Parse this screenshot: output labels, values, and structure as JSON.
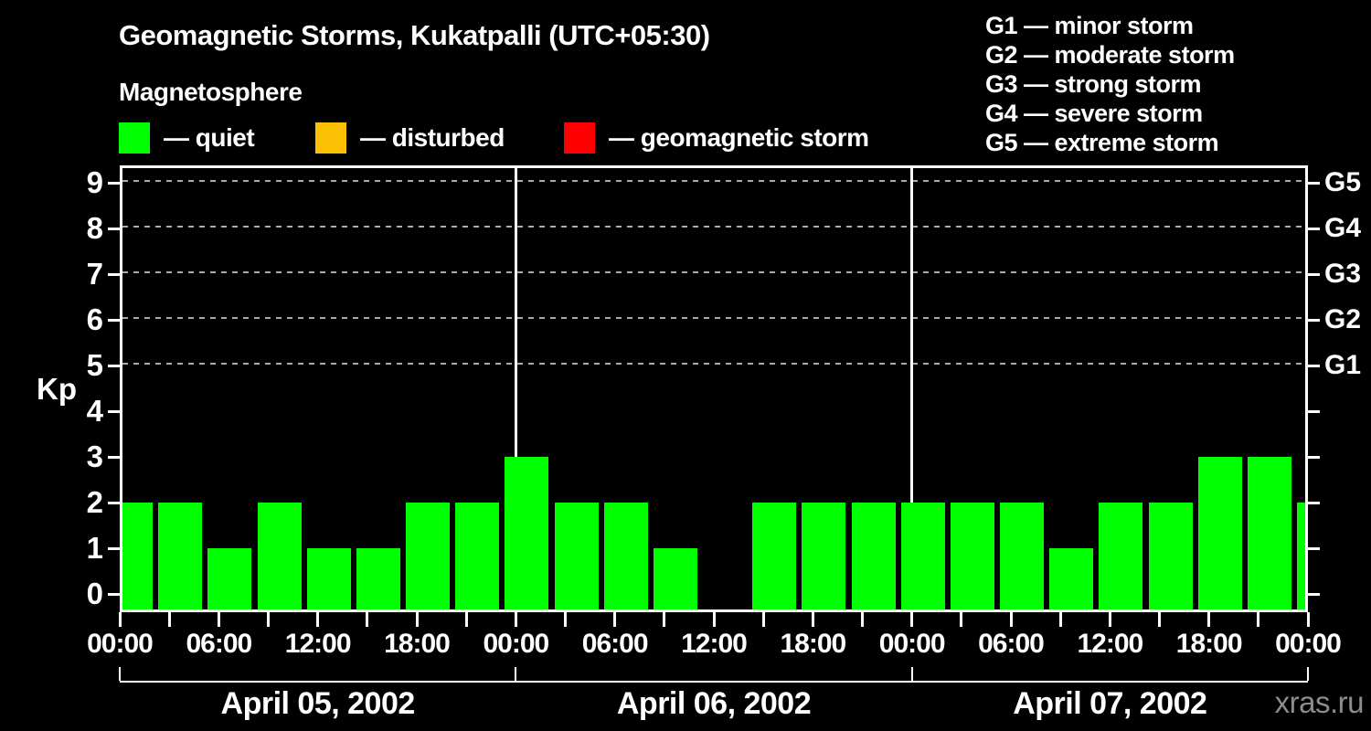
{
  "header": {
    "title": "Geomagnetic Storms, Kukatpalli (UTC+05:30)",
    "subtitle": "Magnetosphere"
  },
  "legend": {
    "items": [
      {
        "name": "quiet",
        "label": "— quiet",
        "color": "#00ff00"
      },
      {
        "name": "disturbed",
        "label": "— disturbed",
        "color": "#fcc005"
      },
      {
        "name": "geomagnetic-storm",
        "label": "— geomagnetic storm",
        "color": "#ff0000"
      }
    ]
  },
  "g_scale_legend": {
    "lines": [
      "G1 — minor storm",
      "G2 — moderate storm",
      "G3 — strong storm",
      "G4 — severe storm",
      "G5 — extreme storm"
    ]
  },
  "watermark": "xras.ru",
  "chart_data": {
    "type": "bar",
    "title": "Geomagnetic Storms, Kukatpalli (UTC+05:30)",
    "subtitle": "Magnetosphere",
    "timezone": "UTC+05:30",
    "ylabel": "Kp",
    "ylim": [
      0,
      9.3
    ],
    "y_ticks": [
      0,
      1,
      2,
      3,
      4,
      5,
      6,
      7,
      8,
      9
    ],
    "grid_kp_levels": [
      5,
      6,
      7,
      8,
      9
    ],
    "right_axis": [
      {
        "kp": 5,
        "label": "G1"
      },
      {
        "kp": 6,
        "label": "G2"
      },
      {
        "kp": 7,
        "label": "G3"
      },
      {
        "kp": 8,
        "label": "G4"
      },
      {
        "kp": 9,
        "label": "G5"
      }
    ],
    "x_tick_interval_hours": 3,
    "x_labels": [
      "00:00",
      "06:00",
      "12:00",
      "18:00",
      "00:00",
      "06:00",
      "12:00",
      "18:00",
      "00:00",
      "06:00",
      "12:00",
      "18:00",
      "00:00"
    ],
    "bar_color": "#00ff00",
    "days": [
      {
        "date": "April 05, 2002",
        "values": [
          2,
          2,
          1,
          2,
          1,
          1,
          2,
          2
        ]
      },
      {
        "date": "April 06, 2002",
        "values": [
          3,
          2,
          2,
          1,
          0,
          2,
          2,
          2
        ]
      },
      {
        "date": "April 07, 2002",
        "values": [
          2,
          2,
          2,
          1,
          2,
          2,
          3,
          3
        ]
      }
    ],
    "partial_bar_after_last_day": 2
  }
}
